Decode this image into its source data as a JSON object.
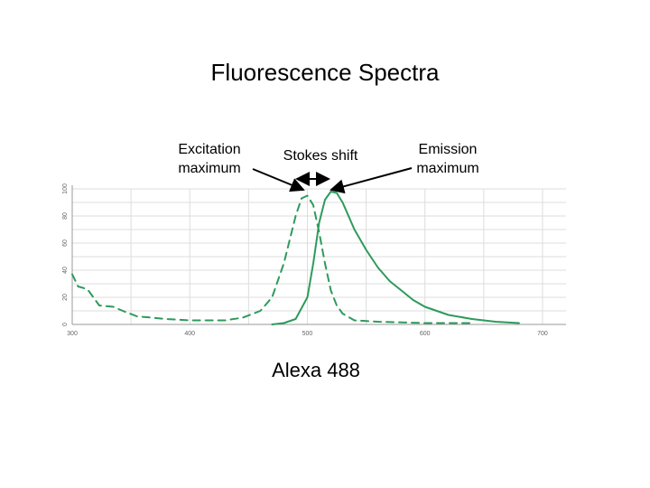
{
  "slide": {
    "title": "Fluorescence Spectra",
    "caption": "Alexa 488"
  },
  "annotations": {
    "excitation": [
      "Excitation",
      "maximum"
    ],
    "emission": [
      "Emission",
      "maximum"
    ],
    "stokes_shift": "Stokes shift"
  },
  "colors": {
    "curve": "#2e9a5c",
    "grid": "#dddddd",
    "axis": "#999999",
    "arrow": "#000000"
  },
  "chart_data": {
    "type": "line",
    "title": "",
    "xlabel": "",
    "ylabel": "",
    "xlim": [
      300,
      720
    ],
    "ylim": [
      0,
      100
    ],
    "x_ticks": [
      300,
      400,
      500,
      600,
      700
    ],
    "y_ticks": [
      0,
      20,
      40,
      60,
      80,
      100
    ],
    "grid": true,
    "series": [
      {
        "style": "dashed",
        "points": [
          [
            300,
            37
          ],
          [
            305,
            28
          ],
          [
            313,
            26
          ],
          [
            318,
            20
          ],
          [
            323,
            14
          ],
          [
            335,
            13
          ],
          [
            343,
            10
          ],
          [
            355,
            6
          ],
          [
            380,
            4
          ],
          [
            400,
            3
          ],
          [
            430,
            3
          ],
          [
            445,
            5
          ],
          [
            460,
            10
          ],
          [
            470,
            20
          ],
          [
            480,
            45
          ],
          [
            490,
            80
          ],
          [
            495,
            93
          ],
          [
            500,
            95
          ],
          [
            505,
            88
          ],
          [
            510,
            68
          ],
          [
            515,
            45
          ],
          [
            520,
            25
          ],
          [
            525,
            14
          ],
          [
            530,
            8
          ],
          [
            540,
            3
          ],
          [
            560,
            2
          ],
          [
            600,
            1
          ],
          [
            640,
            1
          ]
        ]
      },
      {
        "style": "solid",
        "points": [
          [
            470,
            0
          ],
          [
            480,
            1
          ],
          [
            490,
            4
          ],
          [
            500,
            20
          ],
          [
            505,
            45
          ],
          [
            510,
            75
          ],
          [
            515,
            92
          ],
          [
            520,
            98
          ],
          [
            525,
            97
          ],
          [
            530,
            90
          ],
          [
            540,
            70
          ],
          [
            550,
            55
          ],
          [
            560,
            42
          ],
          [
            570,
            32
          ],
          [
            580,
            25
          ],
          [
            590,
            18
          ],
          [
            600,
            13
          ],
          [
            620,
            7
          ],
          [
            640,
            4
          ],
          [
            660,
            2
          ],
          [
            680,
            1
          ]
        ]
      }
    ]
  }
}
